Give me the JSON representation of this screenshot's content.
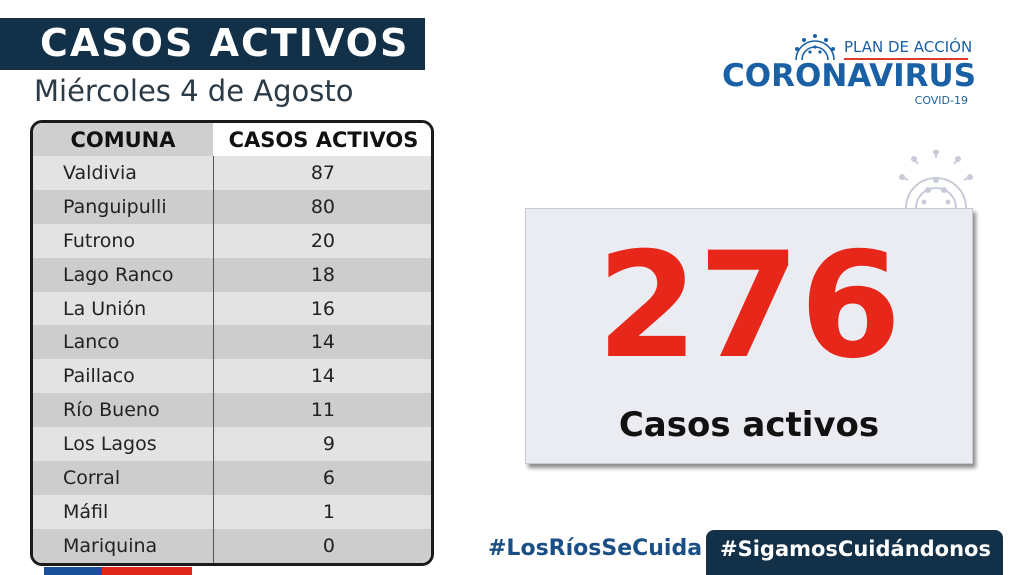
{
  "title": "CASOS ACTIVOS",
  "date": "Miércoles 4 de Agosto",
  "table": {
    "headers": [
      "COMUNA",
      "CASOS ACTIVOS"
    ],
    "rows": [
      {
        "comuna": "Valdivia",
        "casos": "87"
      },
      {
        "comuna": "Panguipulli",
        "casos": "80"
      },
      {
        "comuna": "Futrono",
        "casos": "20"
      },
      {
        "comuna": "Lago Ranco",
        "casos": "18"
      },
      {
        "comuna": "La Unión",
        "casos": "16"
      },
      {
        "comuna": "Lanco",
        "casos": "14"
      },
      {
        "comuna": "Paillaco",
        "casos": "14"
      },
      {
        "comuna": "Río Bueno",
        "casos": "11"
      },
      {
        "comuna": "Los Lagos",
        "casos": "9"
      },
      {
        "comuna": "Corral",
        "casos": "6"
      },
      {
        "comuna": "Máfil",
        "casos": "1"
      },
      {
        "comuna": "Mariquina",
        "casos": "0"
      }
    ]
  },
  "logo": {
    "plan": "PLAN DE ACCIÓN",
    "main": "CORONAVIRUS",
    "sub": "COVID-19",
    "icon": "virus-icon"
  },
  "total": {
    "number": "276",
    "label": "Casos activos"
  },
  "hashtags": {
    "primary": "#LosRíosSeCuida",
    "secondary": "#SigamosCuidándonos"
  },
  "colors": {
    "navy": "#123047",
    "brand_blue": "#1a60a5",
    "red": "#e8271b"
  }
}
